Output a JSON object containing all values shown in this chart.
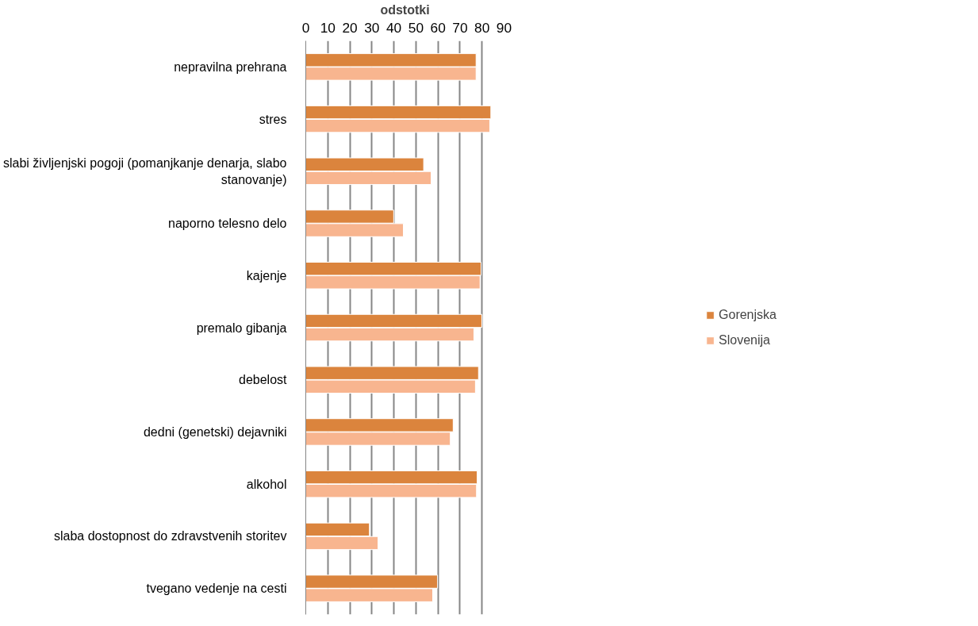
{
  "chart_data": {
    "type": "bar",
    "orientation": "horizontal",
    "xlabel": "odstotki",
    "categories": [
      "nepravilna prehrana",
      "stres",
      "slabi življenjski pogoji (pomanjkanje denarja, slabo stanovanje)",
      "naporno telesno delo",
      "kajenje",
      "premalo gibanja",
      "debelost",
      "dedni (genetski) dejavniki",
      "alkohol",
      "slaba dostopnost do zdravstvenih storitev",
      "tvegano vedenje na cesti"
    ],
    "series": [
      {
        "name": "Gorenjska",
        "color": "#db843d",
        "values": [
          77.3,
          84.0,
          53.5,
          39.9,
          79.6,
          79.9,
          78.4,
          66.9,
          77.8,
          28.9,
          59.8
        ]
      },
      {
        "name": "Slovenija",
        "color": "#f8b58f",
        "values": [
          77.3,
          83.5,
          56.9,
          44.3,
          79.1,
          76.3,
          77.0,
          65.6,
          77.5,
          32.8,
          57.6
        ]
      }
    ],
    "xlim": [
      0,
      90
    ],
    "xticks": [
      0,
      10,
      20,
      30,
      40,
      50,
      60,
      70,
      80,
      90
    ],
    "grid": "x",
    "legend": "right"
  }
}
